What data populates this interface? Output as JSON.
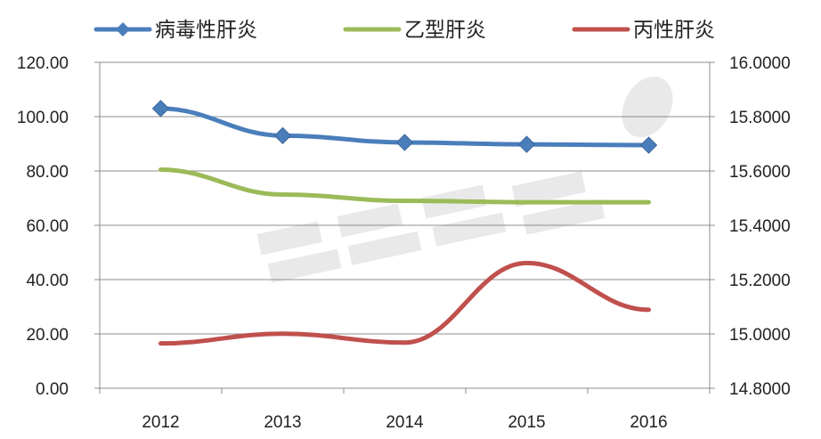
{
  "chart_data": {
    "type": "line",
    "title": "",
    "xlabel": "",
    "ylabel_left": "",
    "ylabel_right": "",
    "categories": [
      "2012",
      "2013",
      "2014",
      "2015",
      "2016"
    ],
    "ylim_left": [
      0,
      120
    ],
    "ylim_right": [
      14.8,
      16.0
    ],
    "y_ticks_left": [
      "0.00",
      "20.00",
      "40.00",
      "60.00",
      "80.00",
      "100.00",
      "120.00"
    ],
    "y_ticks_right": [
      "14.8000",
      "15.0000",
      "15.2000",
      "15.4000",
      "15.6000",
      "15.8000",
      "16.0000"
    ],
    "grid": "horizontal",
    "legend_position": "top",
    "series": [
      {
        "name": "病毒性肝炎",
        "axis": "left",
        "color": "#4a7ebb",
        "marker": "diamond",
        "values": [
          103.0,
          93.0,
          90.5,
          89.8,
          89.5
        ]
      },
      {
        "name": "乙型肝炎",
        "axis": "left",
        "color": "#9bbb59",
        "marker": "none",
        "values": [
          80.5,
          71.3,
          69.0,
          68.5,
          68.5
        ]
      },
      {
        "name": "丙性肝炎",
        "axis": "right",
        "color": "#c0504d",
        "marker": "none",
        "values": [
          14.965,
          15.001,
          14.968,
          15.261,
          15.089
        ]
      }
    ]
  }
}
